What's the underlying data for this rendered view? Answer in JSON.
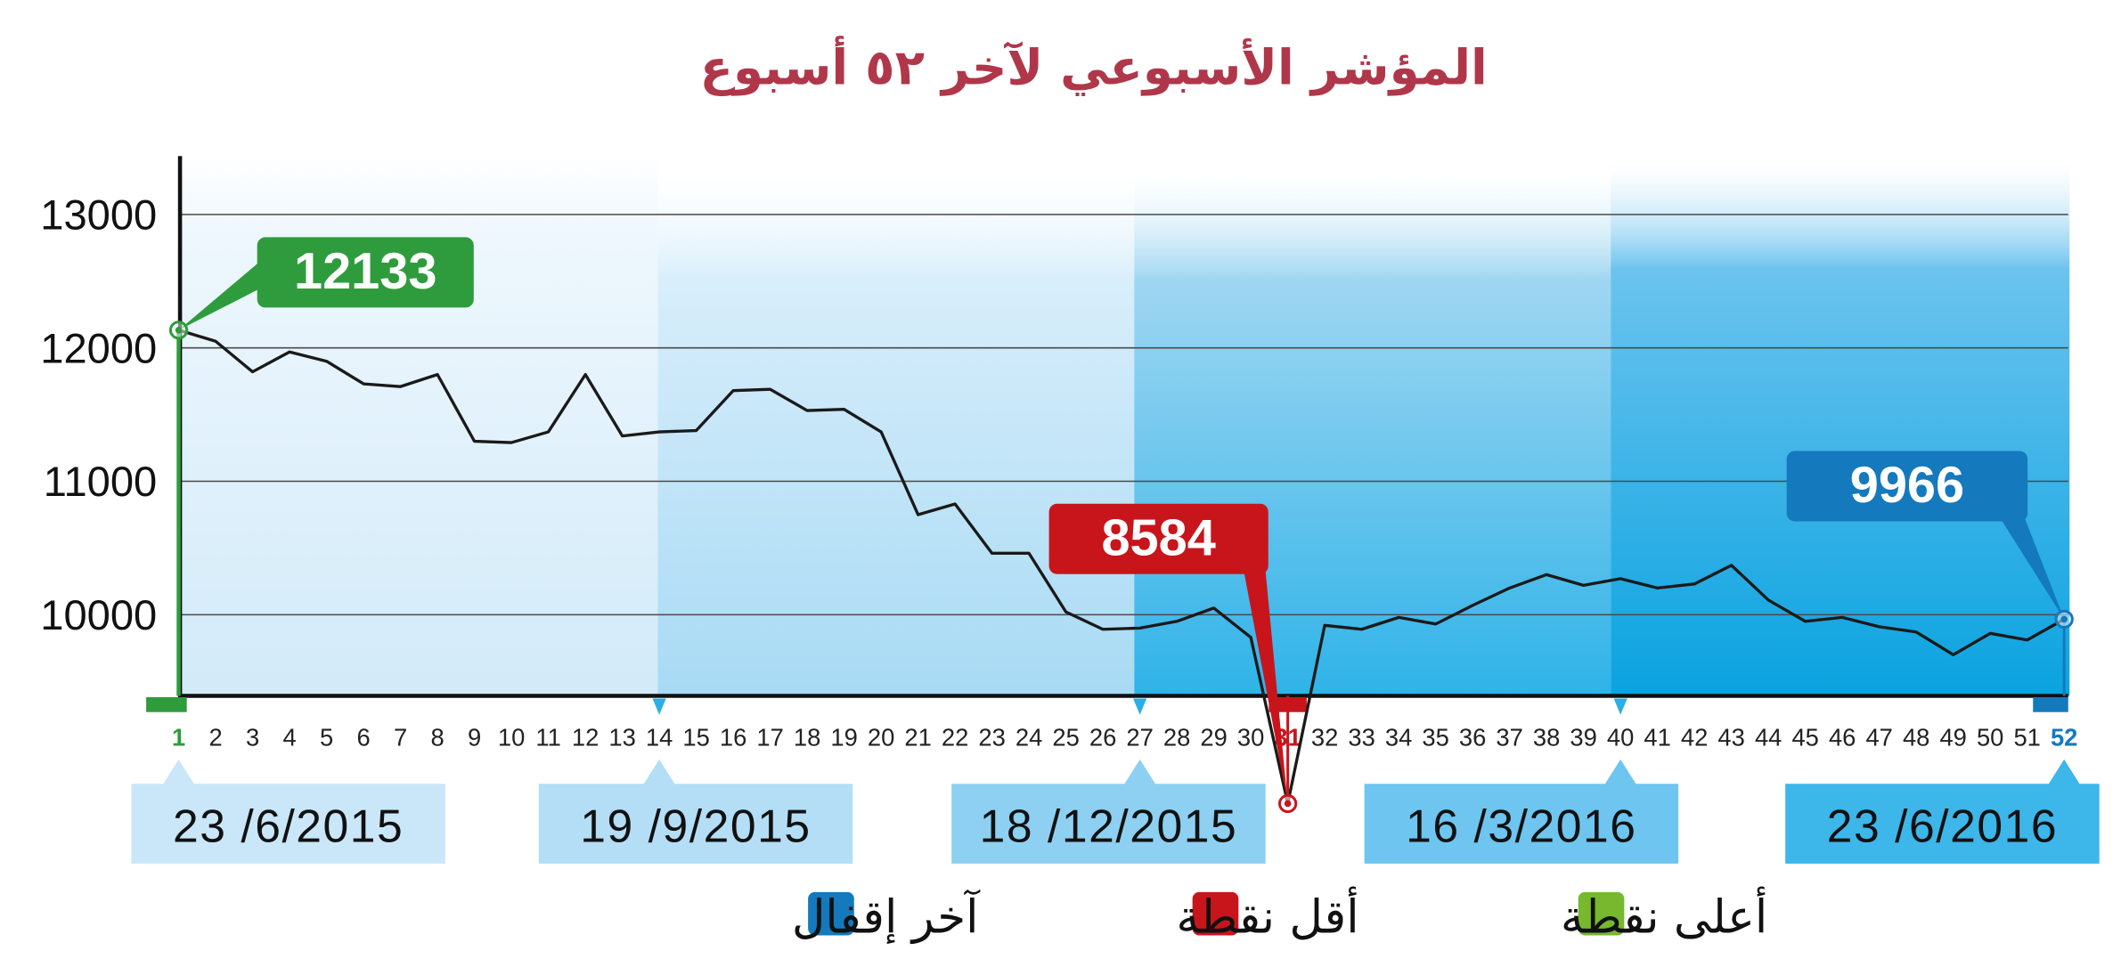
{
  "colors": {
    "high": "#2e9c3c",
    "low": "#c8151c",
    "last": "#1479bd",
    "title": "#b0374a",
    "line": "#1a1a1a",
    "high_swatch": "#77b82f",
    "low_swatch": "#c8151c",
    "last_swatch": "#1479bd"
  },
  "chart_data": {
    "type": "line",
    "title": "المؤشر الأسبوعي لآخر ٥٢ أسبوع",
    "xlabel": "",
    "ylabel": "",
    "ylim": [
      9400,
      13400
    ],
    "yticks": [
      10000,
      11000,
      12000,
      13000
    ],
    "grid": true,
    "x": [
      1,
      2,
      3,
      4,
      5,
      6,
      7,
      8,
      9,
      10,
      11,
      12,
      13,
      14,
      15,
      16,
      17,
      18,
      19,
      20,
      21,
      22,
      23,
      24,
      25,
      26,
      27,
      28,
      29,
      30,
      31,
      32,
      33,
      34,
      35,
      36,
      37,
      38,
      39,
      40,
      41,
      42,
      43,
      44,
      45,
      46,
      47,
      48,
      49,
      50,
      51,
      52
    ],
    "values": [
      12133,
      12050,
      11820,
      11970,
      11900,
      11730,
      11710,
      11800,
      11300,
      11290,
      11370,
      11800,
      11340,
      11370,
      11380,
      11680,
      11690,
      11530,
      11540,
      11370,
      10750,
      10830,
      10460,
      10460,
      10020,
      9890,
      9900,
      9950,
      10050,
      9830,
      8584,
      9920,
      9890,
      9980,
      9930,
      10070,
      10200,
      10300,
      10220,
      10270,
      10200,
      10230,
      10370,
      10110,
      9950,
      9980,
      9910,
      9870,
      9700,
      9860,
      9810,
      9966
    ],
    "callouts": [
      {
        "kind": "high",
        "week": 1,
        "label": "12133"
      },
      {
        "kind": "low",
        "week": 31,
        "label": "8584"
      },
      {
        "kind": "last",
        "week": 52,
        "label": "9966"
      }
    ],
    "dates": [
      {
        "week": 1,
        "label": "23 /6/2015"
      },
      {
        "week": 14,
        "label": "19 /9/2015"
      },
      {
        "week": 27,
        "label": "18 /12/2015"
      },
      {
        "week": 40,
        "label": "16 /3/2016"
      },
      {
        "week": 52,
        "label": "23 /6/2016"
      }
    ],
    "legend": [
      {
        "kind": "last",
        "label": "آخر إقفال"
      },
      {
        "kind": "low",
        "label": "أقل نقطة"
      },
      {
        "kind": "high",
        "label": "أعلى نقطة"
      }
    ]
  }
}
